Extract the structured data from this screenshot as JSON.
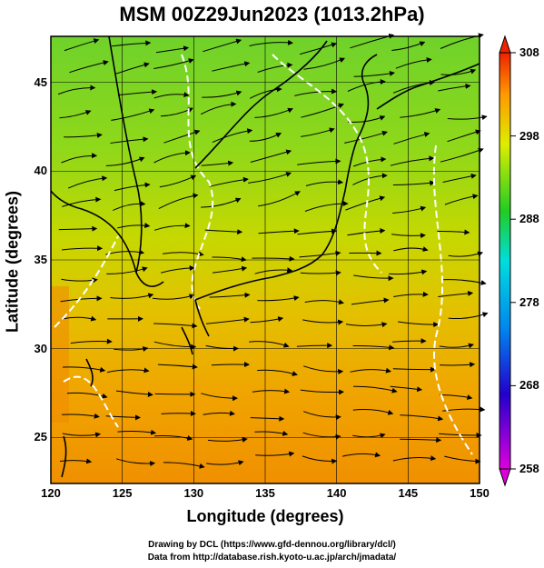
{
  "title": "MSM 00Z29Jun2023 (1013.2hPa)",
  "xlabel": "Longitude (degrees)",
  "ylabel": "Latitude  (degrees)",
  "credits": {
    "line1": "Drawing by DCL (https://www.gfd-dennou.org/library/dcl/)",
    "line2": "Data from http://database.rish.kyoto-u.ac.jp/arch/jmadata/"
  },
  "map": {
    "lon_range": [
      120,
      150
    ],
    "lat_range": [
      22.4,
      47.6
    ],
    "lon_ticks": [
      "120",
      "125",
      "130",
      "135",
      "140",
      "145",
      "150"
    ],
    "lat_ticks": [
      "25",
      "30",
      "35",
      "40",
      "45"
    ],
    "colorbar": {
      "min": 258,
      "max": 308,
      "labels": [
        "308",
        "298",
        "288",
        "278",
        "268",
        "258"
      ],
      "colors": [
        "#cc00cc",
        "#0000cc",
        "#00ccee",
        "#22cc22",
        "#eeee00",
        "#ff9900",
        "#ee3300"
      ]
    },
    "field_colors": {
      "north": "#7ed321",
      "mid": "#c8d400",
      "south": "#f0a000"
    }
  }
}
